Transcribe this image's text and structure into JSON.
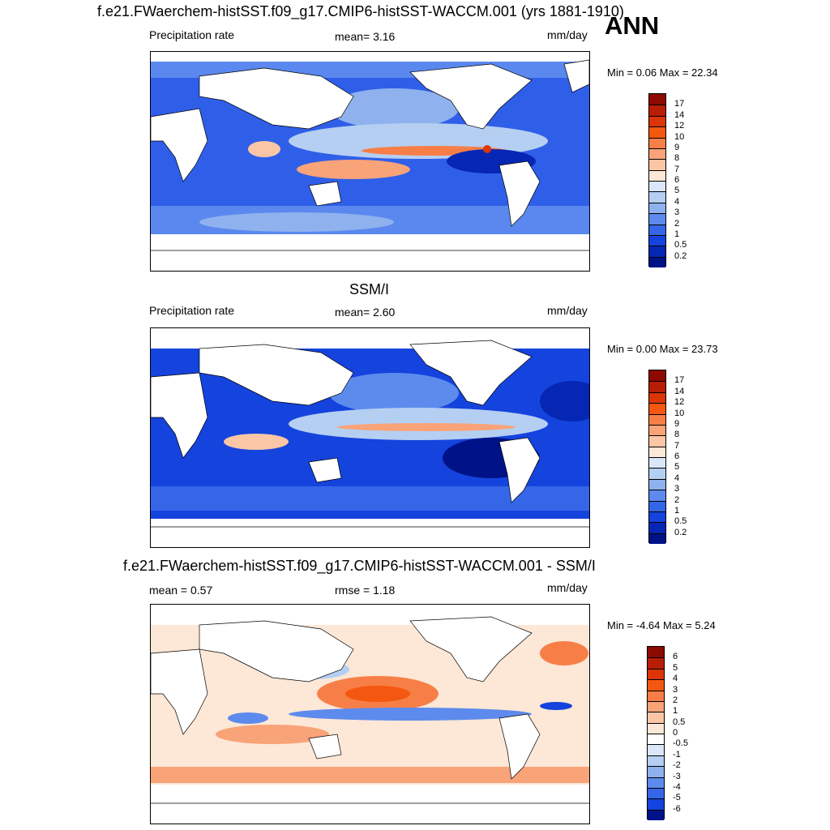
{
  "header": {
    "case_title": "f.e21.FWaerchem-histSST.f09_g17.CMIP6-histSST-WACCM.001 (yrs 1881-1910)",
    "season": "ANN"
  },
  "panels": [
    {
      "id": "model",
      "title": "",
      "left_label": "Precipitation rate",
      "center_label": "mean=   3.16",
      "units": "mm/day",
      "minmax": "Min =   0.06 Max =  22.34",
      "colorbar": {
        "ticks": [
          "17",
          "14",
          "12",
          "10",
          "9",
          "8",
          "7",
          "6",
          "5",
          "4",
          "3",
          "2",
          "1",
          "0.5",
          "0.2"
        ],
        "colors": [
          "#8c0a00",
          "#b81e05",
          "#dc3508",
          "#f4570f",
          "#f77f47",
          "#f9a378",
          "#fbc6a6",
          "#fde7d6",
          "#dbe7f8",
          "#b5cff2",
          "#8fb1ee",
          "#5d8bed",
          "#3666e8",
          "#1543dd",
          "#0527b4",
          "#001288"
        ]
      }
    },
    {
      "id": "obs",
      "title": "SSM/I",
      "left_label": "Precipitation rate",
      "center_label": "mean=   2.60",
      "units": "mm/day",
      "minmax": "Min =   0.00 Max =  23.73",
      "colorbar": {
        "ticks": [
          "17",
          "14",
          "12",
          "10",
          "9",
          "8",
          "7",
          "6",
          "5",
          "4",
          "3",
          "2",
          "1",
          "0.5",
          "0.2"
        ],
        "colors": [
          "#8c0a00",
          "#b81e05",
          "#dc3508",
          "#f4570f",
          "#f77f47",
          "#f9a378",
          "#fbc6a6",
          "#fde7d6",
          "#dbe7f8",
          "#b5cff2",
          "#8fb1ee",
          "#5d8bed",
          "#3666e8",
          "#1543dd",
          "#0527b4",
          "#001288"
        ]
      }
    },
    {
      "id": "diff",
      "title": "f.e21.FWaerchem-histSST.f09_g17.CMIP6-histSST-WACCM.001 - SSM/I",
      "left_label": "mean =   0.57",
      "center_label": "rmse =   1.18",
      "units": "mm/day",
      "minmax": "Min =  -4.64 Max =   5.24",
      "colorbar": {
        "ticks": [
          "6",
          "5",
          "4",
          "3",
          "2",
          "1",
          "0.5",
          "0",
          "-0.5",
          "-1",
          "-2",
          "-3",
          "-4",
          "-5",
          "-6"
        ],
        "colors": [
          "#8c0a00",
          "#b81e05",
          "#dc3508",
          "#f4570f",
          "#f77f47",
          "#f9a378",
          "#fbc6a6",
          "#fde7d6",
          "#ffffff",
          "#dbe7f8",
          "#b5cff2",
          "#8fb1ee",
          "#5d8bed",
          "#3666e8",
          "#1543dd",
          "#001288"
        ]
      }
    }
  ]
}
